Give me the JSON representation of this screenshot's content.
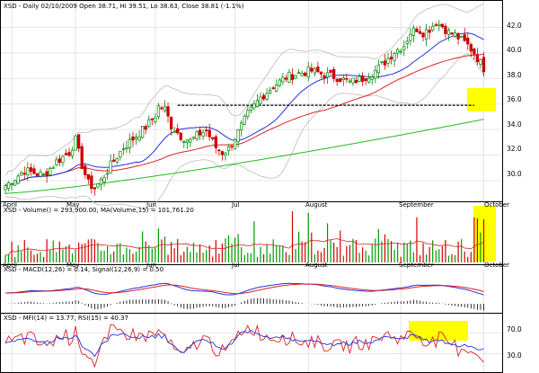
{
  "chart_data": {
    "type": "stock-panels",
    "symbol": "XSD",
    "price_panel": {
      "label": "XSD - Daily 02/10/2009 Open 38.71, Hi 39.51, Lo 38.63, Close 38.81 (-1.1%)",
      "y_ticks": [
        "42.0",
        "40.0",
        "38.0",
        "36.0",
        "34.0",
        "32.0",
        "30.0"
      ],
      "ylim": [
        28.8,
        43.3
      ],
      "resistance_level": 35.9,
      "x_months": [
        "April",
        "May",
        "Jun",
        "Jul",
        "August",
        "September",
        "October"
      ],
      "close_keypoints": [
        [
          0,
          29.6
        ],
        [
          6,
          30.8
        ],
        [
          12,
          30.4
        ],
        [
          16,
          31.5
        ],
        [
          20,
          32.2
        ],
        [
          22,
          33.2
        ],
        [
          24,
          31.2
        ],
        [
          26,
          29.8
        ],
        [
          28,
          29.4
        ],
        [
          30,
          30.0
        ],
        [
          33,
          31.2
        ],
        [
          37,
          32.6
        ],
        [
          41,
          33.5
        ],
        [
          44,
          34.2
        ],
        [
          47,
          35.1
        ],
        [
          48,
          35.8
        ],
        [
          50,
          35.6
        ],
        [
          52,
          34.3
        ],
        [
          55,
          33.5
        ],
        [
          58,
          33.1
        ],
        [
          61,
          33.7
        ],
        [
          63,
          33.9
        ],
        [
          66,
          32.6
        ],
        [
          68,
          32.2
        ],
        [
          70,
          32.5
        ],
        [
          73,
          33.8
        ],
        [
          76,
          35.2
        ],
        [
          80,
          36.5
        ],
        [
          84,
          37.4
        ],
        [
          88,
          38.1
        ],
        [
          92,
          38.4
        ],
        [
          96,
          38.6
        ],
        [
          100,
          38.3
        ],
        [
          104,
          38.1
        ],
        [
          108,
          37.7
        ],
        [
          112,
          38.0
        ],
        [
          116,
          38.6
        ],
        [
          119,
          39.3
        ],
        [
          122,
          40.1
        ],
        [
          125,
          40.6
        ],
        [
          127,
          41.6
        ],
        [
          129,
          41.9
        ],
        [
          131,
          41.6
        ],
        [
          133,
          41.9
        ],
        [
          135,
          42.4
        ],
        [
          137,
          42.1
        ],
        [
          139,
          41.6
        ],
        [
          141,
          41.4
        ],
        [
          143,
          41.0
        ],
        [
          145,
          40.6
        ],
        [
          147,
          40.0
        ],
        [
          149,
          39.2
        ],
        [
          150,
          38.81
        ]
      ],
      "series": [
        "ma20",
        "ma50",
        "ma200",
        "upper-band",
        "lower-band"
      ]
    },
    "volume_panel": {
      "label": "XSD - Volume() = 293,900.00, MA(Volume,15) = 101,761.20"
    },
    "macd_panel": {
      "label": "XSD - MACD(12,26) = 0.14, Signal(12,26,9) = 0.50"
    },
    "rsi_panel": {
      "label": "XSD - MFI(14) = 13.77, RSI(15) = 40.37",
      "y_ticks": [
        "70.0",
        "30.0"
      ],
      "ylim": [
        0,
        100
      ]
    }
  }
}
